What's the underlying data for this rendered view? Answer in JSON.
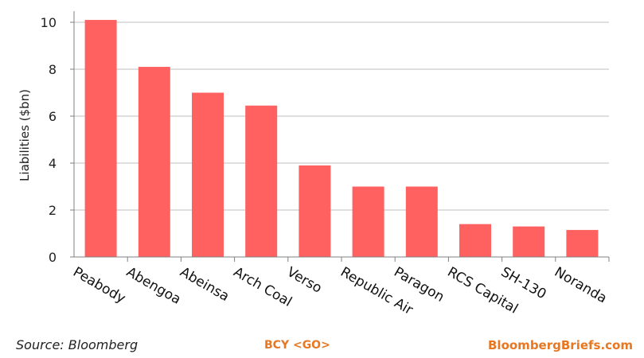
{
  "chart_data": {
    "type": "bar",
    "title": "",
    "xlabel": "",
    "ylabel": "Liabilities ($bn)",
    "categories": [
      "Peabody",
      "Abengoa",
      "Abeinsa",
      "Arch Coal",
      "Verso",
      "Republic Air",
      "Paragon",
      "RCS Capital",
      "SH-130",
      "Noranda"
    ],
    "values": [
      10.1,
      8.1,
      7.0,
      6.45,
      3.9,
      3.0,
      3.0,
      1.4,
      1.3,
      1.15
    ],
    "ylim": [
      0,
      10
    ],
    "yticks": [
      0,
      2,
      4,
      6,
      8,
      10
    ],
    "grid": true,
    "bar_color": "#ff6060",
    "grid_color": "#bfbfbf",
    "axis_color": "#808080"
  },
  "footer": {
    "source": "Source: Bloomberg",
    "ticker": "BCY <GO>",
    "brand": "BloombergBriefs.com",
    "accent_color": "#e87722"
  }
}
